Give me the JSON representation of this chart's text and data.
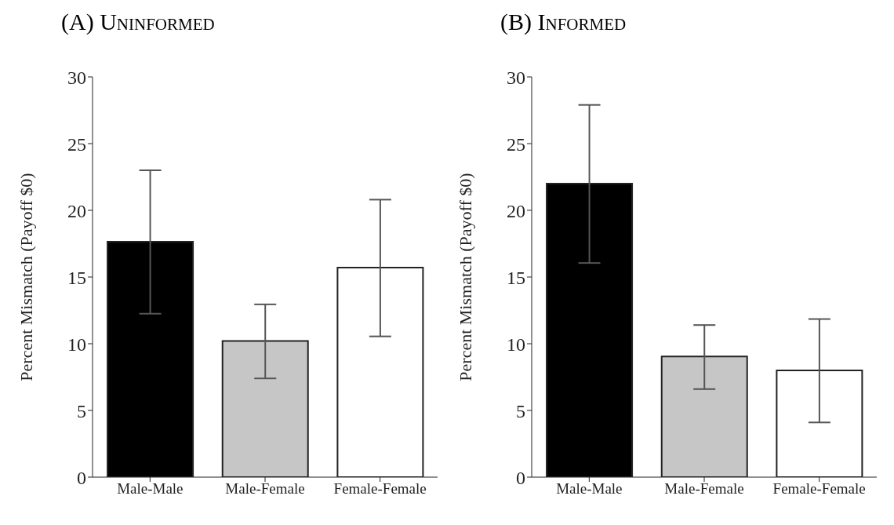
{
  "chart_data": [
    {
      "type": "bar",
      "title": "(A) Uninformed",
      "ylabel": "Percent Mismatch (Payoff $0)",
      "categories": [
        "Male-Male",
        "Male-Female",
        "Female-Female"
      ],
      "values": [
        17.65,
        10.2,
        15.7
      ],
      "colors": [
        "#000000",
        "#c6c6c6",
        "#ffffff"
      ],
      "errors": [
        [
          12.25,
          23.0
        ],
        [
          7.4,
          12.95
        ],
        [
          10.55,
          20.8
        ]
      ],
      "ylim": [
        0,
        30
      ],
      "yticks": [
        0,
        5,
        10,
        15,
        20,
        25,
        30
      ],
      "grid": false,
      "legend": false
    },
    {
      "type": "bar",
      "title": "(B) Informed",
      "ylabel": "Percent Mismatch (Payoff $0)",
      "categories": [
        "Male-Male",
        "Male-Female",
        "Female-Female"
      ],
      "values": [
        22.0,
        9.05,
        8.0
      ],
      "colors": [
        "#000000",
        "#c6c6c6",
        "#ffffff"
      ],
      "errors": [
        [
          16.05,
          27.9
        ],
        [
          6.6,
          11.4
        ],
        [
          4.1,
          11.85
        ]
      ],
      "ylim": [
        0,
        30
      ],
      "yticks": [
        0,
        5,
        10,
        15,
        20,
        25,
        30
      ],
      "grid": false,
      "legend": false
    }
  ]
}
